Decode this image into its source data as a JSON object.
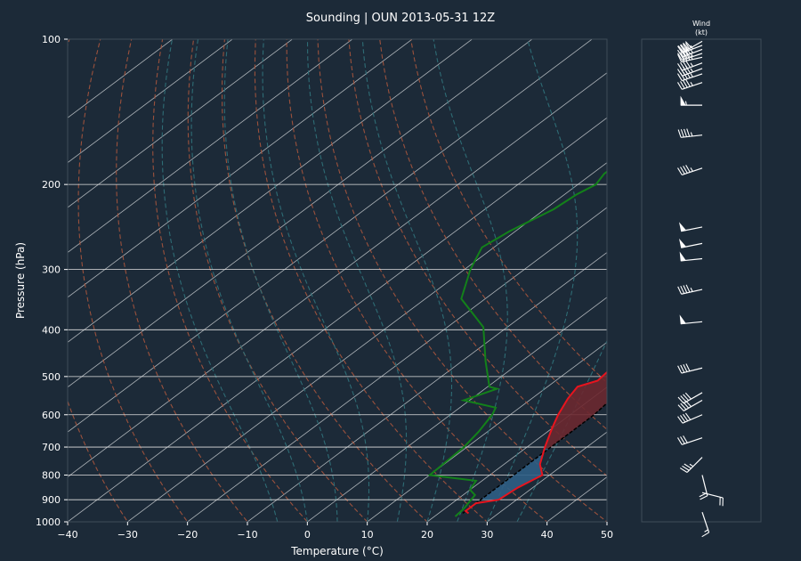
{
  "colors": {
    "background": "#1c2a38",
    "temperature": "#e8141e",
    "dewpoint": "#13811a",
    "parcel": "#000000",
    "cape_fill": "#6b2830",
    "cin_fill": "#2f5e85",
    "dry_adiabat": "#a8553d",
    "moist_adiabat": "#2f7078",
    "isotherm": "#c8ccd0",
    "isobar": "#e0e0e0"
  },
  "chart_data": {
    "type": "line",
    "subtype": "skew-t log-p",
    "title": "Sounding | OUN 2013-05-31 12Z",
    "xlabel": "Temperature (°C)",
    "ylabel": "Pressure (hPa)",
    "xlim": [
      -40,
      50
    ],
    "ylim": [
      1000,
      100
    ],
    "y_scale": "log",
    "x_ticks": [
      -40,
      -30,
      -20,
      -10,
      0,
      10,
      20,
      30,
      40,
      50
    ],
    "x_tick_labels": [
      "−40",
      "−30",
      "−20",
      "−10",
      "0",
      "10",
      "20",
      "30",
      "40",
      "50"
    ],
    "y_ticks": [
      1000,
      900,
      800,
      700,
      600,
      500,
      400,
      300,
      200,
      100
    ],
    "y_tick_labels": [
      "1000",
      "900",
      "800",
      "700",
      "600",
      "500",
      "400",
      "300",
      "200",
      "100"
    ],
    "grid": true,
    "isotherms_c": [
      -130,
      -120,
      -110,
      -100,
      -90,
      -80,
      -70,
      -60,
      -50,
      -40,
      -30,
      -20,
      -10,
      0,
      10,
      20,
      30,
      40,
      50
    ],
    "dry_adiabats_c": [
      -30,
      -20,
      -10,
      0,
      10,
      20,
      30,
      40,
      50,
      60,
      70,
      80
    ],
    "moist_adiabats_c": [
      -5,
      0,
      5,
      10,
      15,
      20,
      25,
      30,
      35
    ],
    "series": [
      {
        "key": "temperature",
        "points": [
          [
            25,
            960
          ],
          [
            24,
            950
          ],
          [
            24,
            915
          ],
          [
            27,
            900
          ],
          [
            27.5,
            850
          ],
          [
            28.8,
            800
          ],
          [
            26,
            760
          ],
          [
            23,
            700
          ],
          [
            20,
            640
          ],
          [
            18,
            600
          ],
          [
            16,
            555
          ],
          [
            15,
            525
          ],
          [
            17,
            510
          ],
          [
            16.5,
            480
          ],
          [
            14,
            440
          ],
          [
            11,
            400
          ],
          [
            6,
            340
          ],
          [
            3,
            300
          ],
          [
            0.5,
            270
          ],
          [
            -2,
            235
          ],
          [
            -3,
            215
          ],
          [
            -2.5,
            195
          ],
          [
            -1,
            192
          ],
          [
            -0.5,
            188
          ],
          [
            1,
            180
          ],
          [
            3.5,
            176
          ],
          [
            5,
            173
          ],
          [
            7,
            170
          ],
          [
            8.5,
            163
          ],
          [
            8,
            158
          ],
          [
            10.5,
            148
          ],
          [
            10,
            135
          ],
          [
            11,
            120
          ],
          [
            10,
            110
          ],
          [
            11,
            108
          ],
          [
            12,
            105
          ],
          [
            14,
            103
          ],
          [
            15.5,
            102
          ],
          [
            16,
            100
          ],
          [
            19,
            97
          ]
        ]
      },
      {
        "key": "dewpoint",
        "points": [
          [
            23.5,
            975
          ],
          [
            23.2,
            940
          ],
          [
            22,
            880
          ],
          [
            20,
            858
          ],
          [
            19,
            822
          ],
          [
            10,
            800
          ],
          [
            9.5,
            700
          ],
          [
            8.5,
            650
          ],
          [
            7,
            600
          ],
          [
            6,
            580
          ],
          [
            -1,
            560
          ],
          [
            2,
            530
          ],
          [
            0.3,
            525
          ],
          [
            -6,
            465
          ],
          [
            -14,
            395
          ],
          [
            -24,
            345
          ],
          [
            -29,
            300
          ],
          [
            -32,
            270
          ],
          [
            -31,
            250
          ],
          [
            -28.5,
            225
          ],
          [
            -28,
            210
          ],
          [
            -27,
            200
          ],
          [
            -28,
            190
          ],
          [
            -28,
            180
          ],
          [
            -28,
            165
          ],
          [
            -30,
            150
          ],
          [
            -30,
            143
          ],
          [
            -31,
            135
          ],
          [
            -32,
            125
          ],
          [
            -32,
            115
          ],
          [
            -29,
            108
          ],
          [
            -26,
            103
          ],
          [
            -26,
            99
          ],
          [
            -24.5,
            97.5
          ]
        ]
      },
      {
        "key": "parcel",
        "points": [
          [
            24,
            960
          ],
          [
            24,
            930
          ],
          [
            24,
            900
          ],
          [
            24,
            850
          ],
          [
            24,
            800
          ],
          [
            24,
            750
          ],
          [
            24,
            700
          ],
          [
            24,
            650
          ],
          [
            24,
            600
          ],
          [
            23.3,
            550
          ],
          [
            22.5,
            500
          ],
          [
            21,
            450
          ],
          [
            19,
            400
          ],
          [
            16,
            350
          ],
          [
            12,
            300
          ],
          [
            8,
            270
          ],
          [
            4,
            245
          ],
          [
            -1,
            220
          ],
          [
            -5,
            200
          ],
          [
            -10,
            180
          ],
          [
            -13,
            168
          ],
          [
            -16,
            157
          ],
          [
            -18,
            148
          ],
          [
            -21,
            135
          ],
          [
            -24,
            123
          ],
          [
            -27,
            112
          ],
          [
            -29.5,
            104
          ],
          [
            -31,
            100
          ]
        ]
      }
    ],
    "wind_barbs_panel_title": "Wind\n(kt)",
    "wind_barbs": [
      {
        "p": 955,
        "u": -5,
        "v": 15
      },
      {
        "p": 870,
        "u": -20,
        "v": 5
      },
      {
        "p": 800,
        "u": -5,
        "v": 20
      },
      {
        "p": 735,
        "u": 25,
        "v": 25
      },
      {
        "p": 670,
        "u": 30,
        "v": 10
      },
      {
        "p": 600,
        "u": 35,
        "v": 15
      },
      {
        "p": 560,
        "u": 35,
        "v": 20
      },
      {
        "p": 540,
        "u": 35,
        "v": 20
      },
      {
        "p": 480,
        "u": 40,
        "v": 10
      },
      {
        "p": 385,
        "u": 50,
        "v": 5
      },
      {
        "p": 330,
        "u": 45,
        "v": 10
      },
      {
        "p": 285,
        "u": 50,
        "v": 5
      },
      {
        "p": 265,
        "u": 50,
        "v": 10
      },
      {
        "p": 245,
        "u": 50,
        "v": 10
      },
      {
        "p": 185,
        "u": 45,
        "v": 15
      },
      {
        "p": 158,
        "u": 45,
        "v": 5
      },
      {
        "p": 137,
        "u": 55,
        "v": 0
      },
      {
        "p": 123,
        "u": 45,
        "v": 15
      },
      {
        "p": 118,
        "u": 45,
        "v": 15
      },
      {
        "p": 115,
        "u": 40,
        "v": 15
      },
      {
        "p": 112,
        "u": 40,
        "v": 15
      },
      {
        "p": 109,
        "u": 45,
        "v": 10
      },
      {
        "p": 107,
        "u": 45,
        "v": 15
      },
      {
        "p": 105,
        "u": 40,
        "v": 15
      },
      {
        "p": 103,
        "u": 40,
        "v": 15
      },
      {
        "p": 101,
        "u": 35,
        "v": 20
      }
    ]
  }
}
